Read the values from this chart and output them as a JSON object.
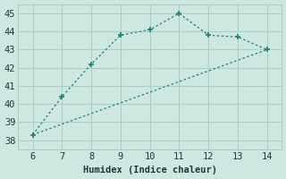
{
  "line1_x": [
    6,
    7,
    8,
    9,
    10,
    11,
    12,
    13,
    14
  ],
  "line1_y": [
    38.3,
    40.4,
    42.2,
    43.8,
    44.1,
    45.0,
    43.8,
    43.7,
    43.0
  ],
  "line2_x": [
    6,
    14
  ],
  "line2_y": [
    38.3,
    43.0
  ],
  "line_color": "#2a7d6e",
  "bg_color": "#cce8e0",
  "grid_color": "#aacfc5",
  "xlabel": "Humidex (Indice chaleur)",
  "xlim": [
    5.5,
    14.5
  ],
  "ylim": [
    37.5,
    45.5
  ],
  "xticks": [
    6,
    7,
    8,
    9,
    10,
    11,
    12,
    13,
    14
  ],
  "yticks": [
    38,
    39,
    40,
    41,
    42,
    43,
    44,
    45
  ],
  "xlabel_fontsize": 7.5,
  "tick_fontsize": 7.5
}
